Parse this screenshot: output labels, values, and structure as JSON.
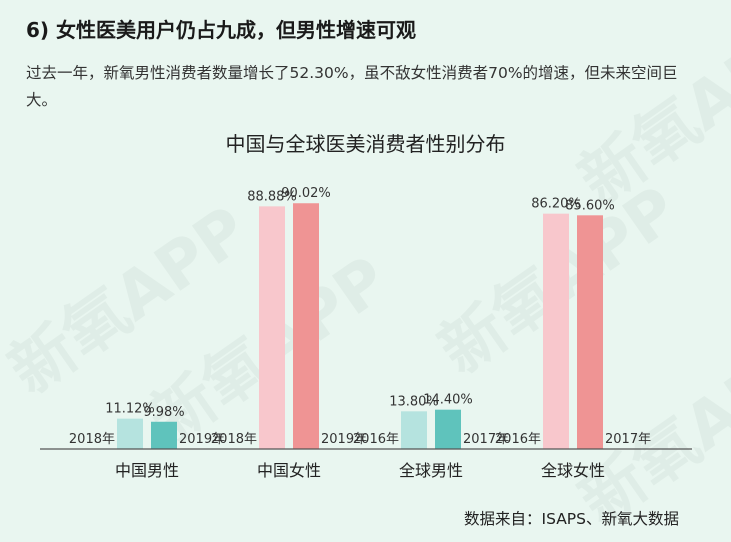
{
  "page": {
    "heading": "6) 女性医美用户仍占九成，但男性增速可观",
    "intro": "过去一年，新氧男性消费者数量增长了52.30%，虽不敌女性消费者70%的增速，但未来空间巨大。",
    "source": "数据来自：ISAPS、新氧大数据",
    "watermark": "新氧APP"
  },
  "chart_data": {
    "type": "bar",
    "title": "中国与全球医美消费者性别分布",
    "xlabel": "",
    "ylabel": "",
    "ylim": [
      0,
      100
    ],
    "grid": false,
    "legend": "none",
    "groups": [
      {
        "name": "中国男性",
        "bars": [
          {
            "year": "2018年",
            "value": 11.12,
            "label": "11.12%",
            "color": "#b5e3df"
          },
          {
            "year": "2019年",
            "value": 9.98,
            "label": "9.98%",
            "color": "#5fc3bc"
          }
        ]
      },
      {
        "name": "中国女性",
        "bars": [
          {
            "year": "2018年",
            "value": 88.88,
            "label": "88.88%",
            "color": "#f8c7cc"
          },
          {
            "year": "2019年",
            "value": 90.02,
            "label": "90.02%",
            "color": "#ef9494"
          }
        ]
      },
      {
        "name": "全球男性",
        "bars": [
          {
            "year": "2016年",
            "value": 13.8,
            "label": "13.80%",
            "color": "#b5e3df"
          },
          {
            "year": "2017年",
            "value": 14.4,
            "label": "14.40%",
            "color": "#5fc3bc"
          }
        ]
      },
      {
        "name": "全球女性",
        "bars": [
          {
            "year": "2016年",
            "value": 86.2,
            "label": "86.20%",
            "color": "#f8c7cc"
          },
          {
            "year": "2017年",
            "value": 85.6,
            "label": "85.60%",
            "color": "#ef9494"
          }
        ]
      }
    ]
  }
}
